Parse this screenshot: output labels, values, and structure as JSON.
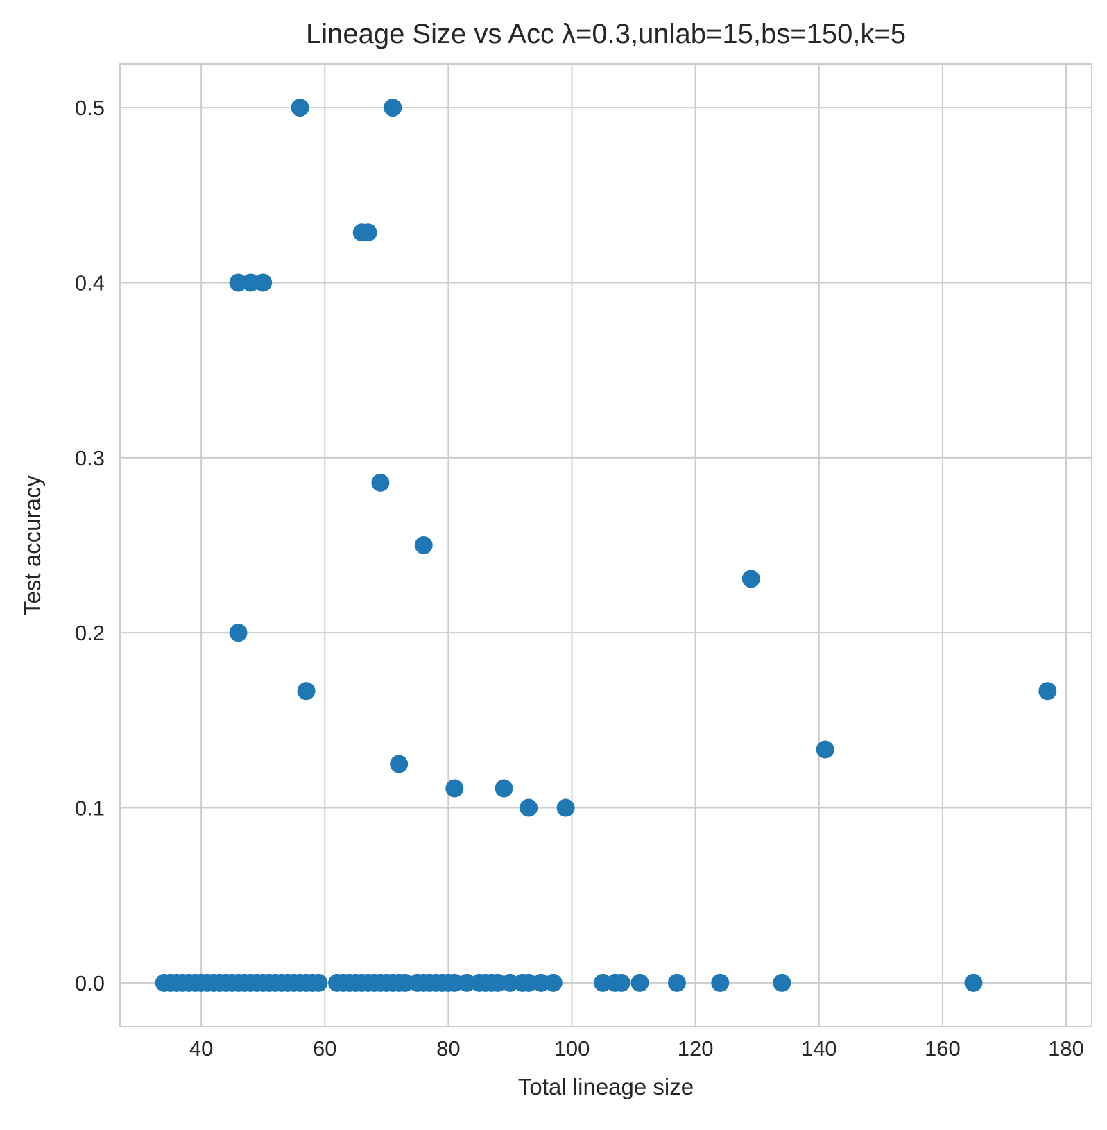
{
  "chart_data": {
    "type": "scatter",
    "title": "Lineage Size vs Acc λ=0.3,unlab=15,bs=150,k=5",
    "xlabel": "Total lineage size",
    "ylabel": "Test accuracy",
    "xlim": [
      26.85,
      184.15
    ],
    "ylim": [
      -0.025,
      0.525
    ],
    "x_ticks": [
      40,
      60,
      80,
      100,
      120,
      140,
      160,
      180
    ],
    "y_ticks": [
      0.0,
      0.1,
      0.2,
      0.3,
      0.4,
      0.5
    ],
    "x_tick_labels": [
      "40",
      "60",
      "80",
      "100",
      "120",
      "140",
      "160",
      "180"
    ],
    "y_tick_labels": [
      "0.0",
      "0.1",
      "0.2",
      "0.3",
      "0.4",
      "0.5"
    ],
    "grid": true,
    "marker_color": "#1f77b4",
    "series": [
      {
        "x": [
          56,
          71,
          66,
          67,
          46,
          48,
          50,
          69,
          76,
          129,
          46,
          57,
          177,
          141,
          72,
          81,
          89,
          93,
          99,
          34,
          35,
          36,
          37,
          38,
          39,
          40,
          41,
          42,
          43,
          44,
          45,
          46,
          47,
          48,
          49,
          50,
          51,
          52,
          53,
          54,
          55,
          56,
          57,
          58,
          59,
          62,
          63,
          64,
          65,
          66,
          67,
          68,
          69,
          70,
          71,
          72,
          73,
          75,
          76,
          77,
          78,
          79,
          80,
          81,
          83,
          85,
          86,
          87,
          88,
          90,
          92,
          93,
          95,
          97,
          105,
          107,
          108,
          111,
          117,
          124,
          134,
          165
        ],
        "y": [
          0.5,
          0.5,
          0.4286,
          0.4286,
          0.4,
          0.4,
          0.4,
          0.2857,
          0.25,
          0.2308,
          0.2,
          0.1667,
          0.1667,
          0.1333,
          0.125,
          0.1111,
          0.1111,
          0.1,
          0.1,
          0,
          0,
          0,
          0,
          0,
          0,
          0,
          0,
          0,
          0,
          0,
          0,
          0,
          0,
          0,
          0,
          0,
          0,
          0,
          0,
          0,
          0,
          0,
          0,
          0,
          0,
          0,
          0,
          0,
          0,
          0,
          0,
          0,
          0,
          0,
          0,
          0,
          0,
          0,
          0,
          0,
          0,
          0,
          0,
          0,
          0,
          0,
          0,
          0,
          0,
          0,
          0,
          0,
          0,
          0,
          0,
          0,
          0,
          0,
          0,
          0,
          0,
          0
        ]
      }
    ]
  }
}
